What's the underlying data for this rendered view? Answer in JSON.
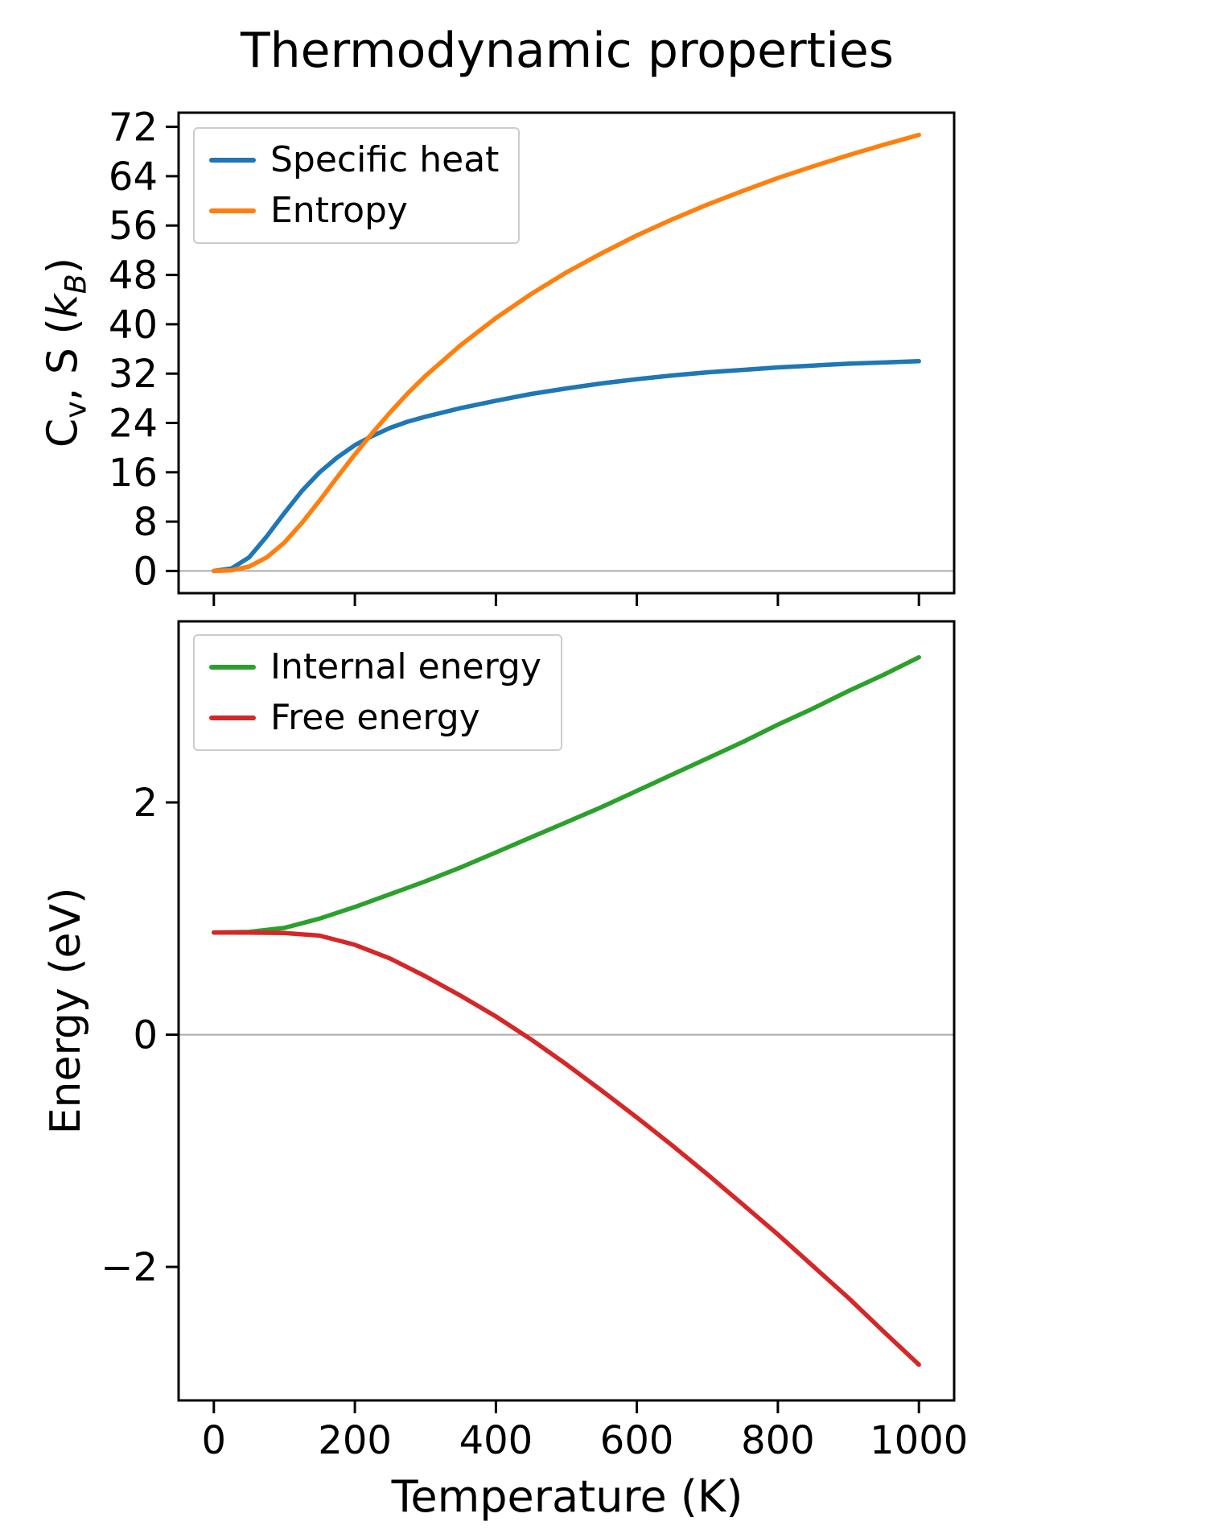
{
  "title": "Thermodynamic properties",
  "colors": {
    "specific_heat": "#1f77b4",
    "entropy": "#ff7f0e",
    "internal_energy": "#2ca02c",
    "free_energy": "#d62728",
    "zero_line": "#ababab",
    "spine": "#000000"
  },
  "chart_data": [
    {
      "type": "line",
      "title": "Thermodynamic properties",
      "ylabel_text": "Cv, S (kB)",
      "ylabel_html": "C<sub>v</sub>, S (<i>k<sub>B</sub></i>)",
      "xlabel": "",
      "xlim": [
        -50,
        1050
      ],
      "ylim": [
        -3.6,
        74.3
      ],
      "xticks": [
        0,
        200,
        400,
        600,
        800,
        1000
      ],
      "show_xtick_labels": false,
      "yticks": [
        0,
        8,
        16,
        24,
        32,
        40,
        48,
        56,
        64,
        72
      ],
      "zero_line": true,
      "grid": false,
      "legend_position": "upper left",
      "series": [
        {
          "name": "Specific heat",
          "color": "#1f77b4",
          "x": [
            0,
            25,
            50,
            75,
            100,
            125,
            150,
            175,
            200,
            225,
            250,
            275,
            300,
            350,
            400,
            450,
            500,
            550,
            600,
            650,
            700,
            750,
            800,
            850,
            900,
            950,
            1000
          ],
          "y": [
            0,
            0.4,
            2.2,
            5.6,
            9.4,
            13.0,
            16.0,
            18.4,
            20.4,
            21.9,
            23.2,
            24.2,
            25.0,
            26.4,
            27.6,
            28.7,
            29.6,
            30.4,
            31.1,
            31.7,
            32.2,
            32.6,
            33.0,
            33.3,
            33.6,
            33.8,
            34.0
          ]
        },
        {
          "name": "Entropy",
          "color": "#ff7f0e",
          "x": [
            0,
            25,
            50,
            75,
            100,
            125,
            150,
            175,
            200,
            225,
            250,
            275,
            300,
            350,
            400,
            450,
            500,
            550,
            600,
            650,
            700,
            750,
            800,
            850,
            900,
            950,
            1000
          ],
          "y": [
            0,
            0.1,
            0.7,
            2.2,
            4.6,
            7.8,
            11.4,
            15.2,
            18.9,
            22.4,
            25.7,
            28.8,
            31.6,
            36.6,
            41.0,
            44.9,
            48.4,
            51.5,
            54.4,
            57.0,
            59.4,
            61.6,
            63.7,
            65.6,
            67.4,
            69.1,
            70.7
          ]
        }
      ]
    },
    {
      "type": "line",
      "title": "",
      "ylabel_text": "Energy (eV)",
      "ylabel_html": "Energy (eV)",
      "xlabel": "Temperature (K)",
      "xlim": [
        -50,
        1050
      ],
      "ylim": [
        -3.15,
        3.56
      ],
      "xticks": [
        0,
        200,
        400,
        600,
        800,
        1000
      ],
      "show_xtick_labels": true,
      "yticks": [
        -2,
        0,
        2
      ],
      "zero_line": true,
      "grid": false,
      "legend_position": "upper left",
      "series": [
        {
          "name": "Internal energy",
          "color": "#2ca02c",
          "x": [
            0,
            50,
            100,
            150,
            200,
            250,
            300,
            350,
            400,
            450,
            500,
            550,
            600,
            650,
            700,
            750,
            800,
            850,
            900,
            950,
            1000
          ],
          "y": [
            0.88,
            0.885,
            0.92,
            1.0,
            1.1,
            1.21,
            1.32,
            1.44,
            1.57,
            1.7,
            1.83,
            1.96,
            2.1,
            2.24,
            2.38,
            2.52,
            2.67,
            2.81,
            2.96,
            3.1,
            3.25
          ]
        },
        {
          "name": "Free energy",
          "color": "#d62728",
          "x": [
            0,
            50,
            100,
            150,
            200,
            250,
            300,
            350,
            400,
            450,
            500,
            550,
            600,
            650,
            700,
            750,
            800,
            850,
            900,
            950,
            1000
          ],
          "y": [
            0.88,
            0.879,
            0.876,
            0.853,
            0.774,
            0.656,
            0.503,
            0.336,
            0.157,
            -0.041,
            -0.255,
            -0.481,
            -0.713,
            -0.953,
            -1.203,
            -1.461,
            -1.721,
            -1.994,
            -2.266,
            -2.557,
            -2.842
          ]
        }
      ]
    }
  ]
}
